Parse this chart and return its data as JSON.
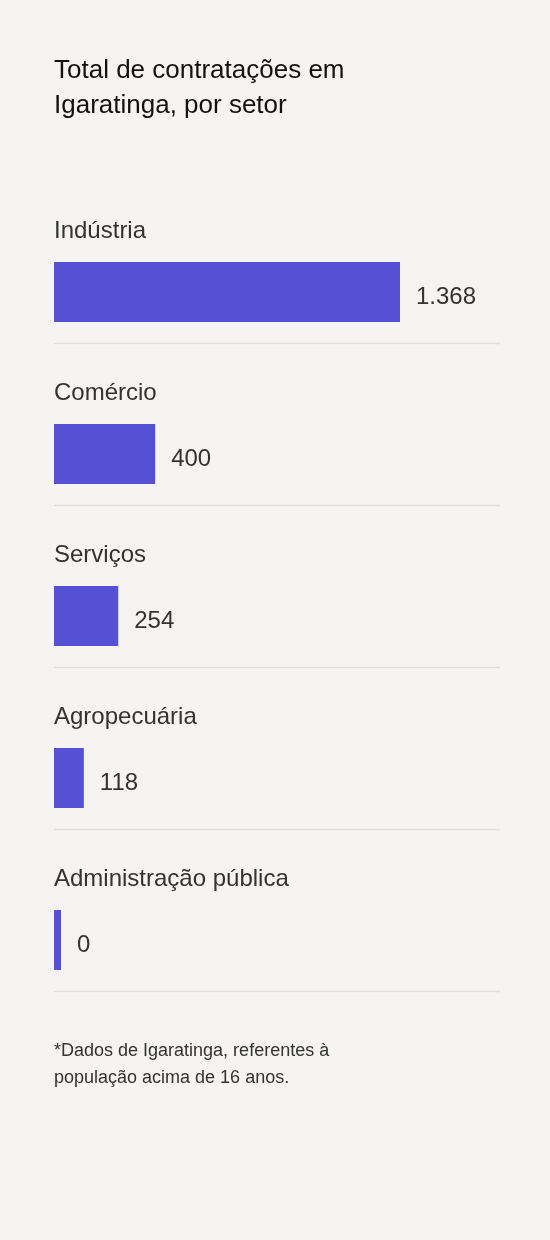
{
  "chart_data": {
    "type": "bar",
    "orientation": "horizontal",
    "title": "Total de contratações em Igaratinga, por setor",
    "categories": [
      "Indústria",
      "Comércio",
      "Serviços",
      "Agropecuária",
      "Administração pública"
    ],
    "values": [
      1368,
      400,
      254,
      118,
      0
    ],
    "color": "#5650d4",
    "value_labels": [
      "1.368",
      "400",
      "254",
      "118",
      "0"
    ],
    "annotations": [
      "*Dados de Igaratinga, referentes à população acima de 16 anos."
    ]
  }
}
